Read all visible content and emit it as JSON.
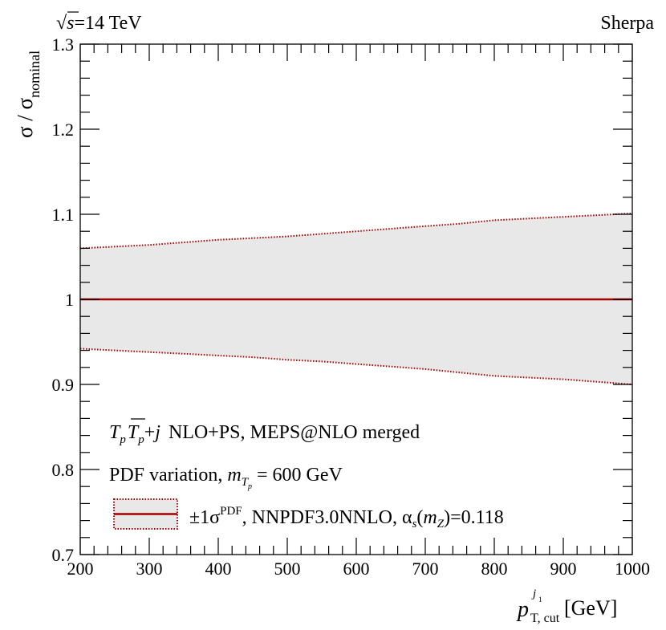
{
  "header": {
    "energy_prefix": "√",
    "energy_var": "s",
    "energy_value": "=14 TeV",
    "generator": "Sherpa"
  },
  "legend": {
    "process_T1": "T",
    "process_sub1": "p",
    "process_T2": "T",
    "process_sub2": "p",
    "process_plus": "+",
    "process_j": "j",
    "process_desc": "NLO+PS, MEPS@NLO merged",
    "variation_text": "PDF variation,",
    "mass_m": "m",
    "mass_T": "T",
    "mass_p": "p",
    "mass_value": "= 600 GeV",
    "band_pm": "±1σ",
    "band_sup": "PDF",
    "band_pdfset": ", NNPDF3.0NNLO, α",
    "band_s": "s",
    "band_paren_open": "(",
    "band_mz_m": "m",
    "band_mz_Z": "Z",
    "band_value": ")=0.118"
  },
  "colors": {
    "line": "#a50000",
    "band_fill": "#e8e8e8",
    "axis": "#000000"
  },
  "chart_data": {
    "type": "area",
    "title": "",
    "xlabel": {
      "main": "p",
      "sup_j": "j",
      "sup_sub1": "1",
      "sub": "T, cut",
      "unit": "[GeV]"
    },
    "ylabel": {
      "main": "σ / σ",
      "sub": "nominal"
    },
    "xlim": [
      200,
      1000
    ],
    "ylim": [
      0.7,
      1.3
    ],
    "x_ticks": [
      200,
      300,
      400,
      500,
      600,
      700,
      800,
      900,
      1000
    ],
    "x_tick_labels": [
      "200",
      "300",
      "400",
      "500",
      "600",
      "700",
      "800",
      "900",
      "1000"
    ],
    "y_ticks": [
      0.7,
      0.8,
      0.9,
      1.0,
      1.1,
      1.2,
      1.3
    ],
    "y_tick_labels": [
      "0.7",
      "0.8",
      "0.9",
      "1",
      "1.1",
      "1.2",
      "1.3"
    ],
    "series": [
      {
        "name": "nominal",
        "x": [
          200,
          1000
        ],
        "values": [
          1.0,
          1.0
        ]
      },
      {
        "name": "±1σ PDF band",
        "x": [
          200,
          250,
          300,
          350,
          400,
          450,
          500,
          550,
          600,
          650,
          700,
          750,
          800,
          850,
          900,
          950,
          1000
        ],
        "upper": [
          1.06,
          1.062,
          1.064,
          1.067,
          1.07,
          1.072,
          1.074,
          1.077,
          1.08,
          1.083,
          1.086,
          1.089,
          1.093,
          1.095,
          1.097,
          1.099,
          1.101
        ],
        "lower": [
          0.942,
          0.94,
          0.938,
          0.936,
          0.934,
          0.932,
          0.929,
          0.927,
          0.924,
          0.921,
          0.918,
          0.914,
          0.91,
          0.908,
          0.906,
          0.903,
          0.9
        ]
      }
    ]
  }
}
